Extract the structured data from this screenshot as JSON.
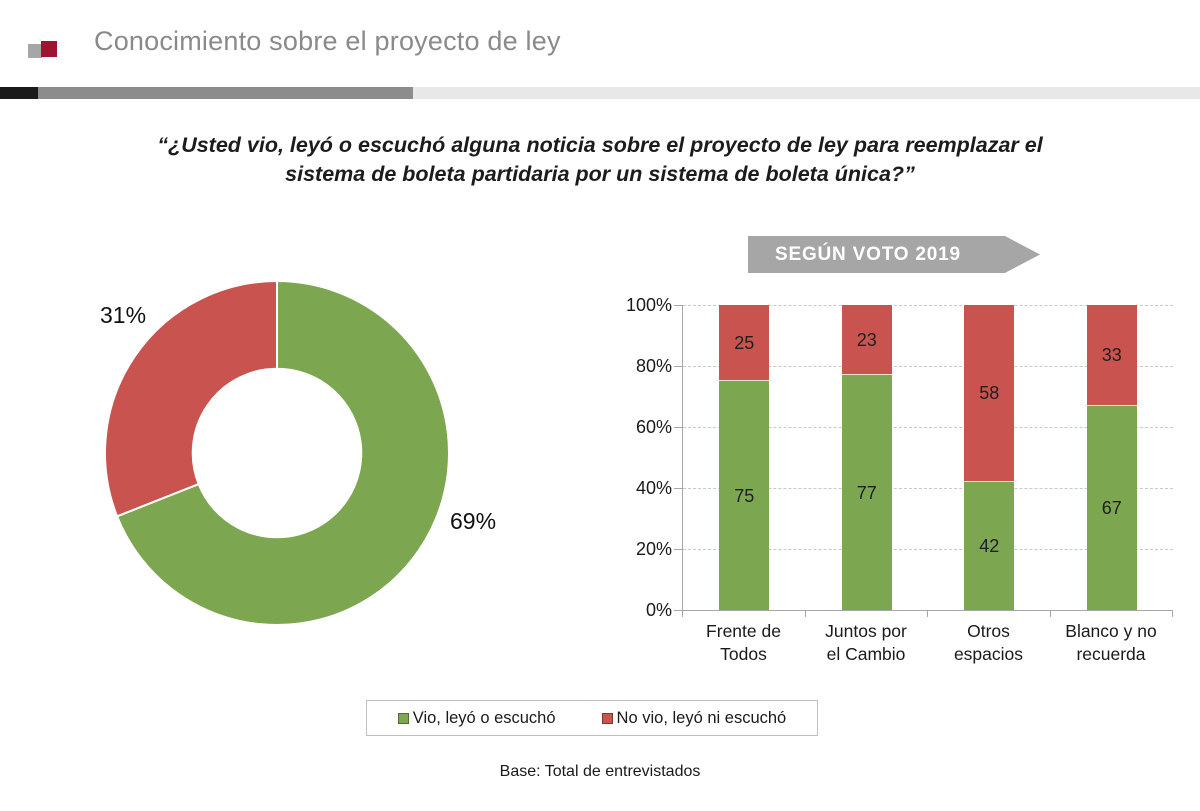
{
  "header": {
    "title": "Conocimiento sobre el proyecto de ley"
  },
  "question": "“¿Usted vio, leyó o escuchó alguna noticia sobre el proyecto de ley para reemplazar el sistema de boleta partidaria por un sistema de boleta única?”",
  "banner": {
    "label": "SEGÚN VOTO 2019"
  },
  "footer": {
    "base_note": "Base: Total de entrevistados"
  },
  "colors": {
    "green": "#7CA64F",
    "red": "#C8534F",
    "banner_gray": "#A6A6A6",
    "title_gray": "#8A8A8A",
    "logo_gray": "#A6A6A6",
    "logo_red": "#A1132E",
    "axis": "#A6A6A6",
    "gridline": "#C9C9C9",
    "segment_separator": "#F0E4D0"
  },
  "chart_data": [
    {
      "type": "pie",
      "subtype": "donut",
      "labels": [
        "Vio, leyó o escuchó",
        "No vio, leyó ni escuchó"
      ],
      "values": [
        69,
        31
      ],
      "value_labels": [
        "69%",
        "31%"
      ],
      "colors": [
        "#7CA64F",
        "#C8534F"
      ],
      "start_angle_deg": 0,
      "direction": "clockwise",
      "inner_radius_ratio": 0.49,
      "legend_position": "bottom"
    },
    {
      "type": "bar",
      "stacked": true,
      "percent_axis": true,
      "title": "SEGÚN VOTO 2019",
      "categories": [
        "Frente de Todos",
        "Juntos por el Cambio",
        "Otros espacios",
        "Blanco y no recuerda"
      ],
      "category_labels_wrapped": [
        "Frente de\nTodos",
        "Juntos por\nel Cambio",
        "Otros\nespacios",
        "Blanco y no\nrecuerda"
      ],
      "series": [
        {
          "name": "Vio, leyó o escuchó",
          "color": "#7CA64F",
          "values": [
            75,
            77,
            42,
            67
          ]
        },
        {
          "name": "No vio, leyó ni escuchó",
          "color": "#C8534F",
          "values": [
            25,
            23,
            58,
            33
          ]
        }
      ],
      "y_ticks": [
        "0%",
        "20%",
        "40%",
        "60%",
        "80%",
        "100%"
      ],
      "ylim": [
        0,
        100
      ],
      "grid": "dashed-horizontal",
      "legend_position": "bottom"
    }
  ]
}
